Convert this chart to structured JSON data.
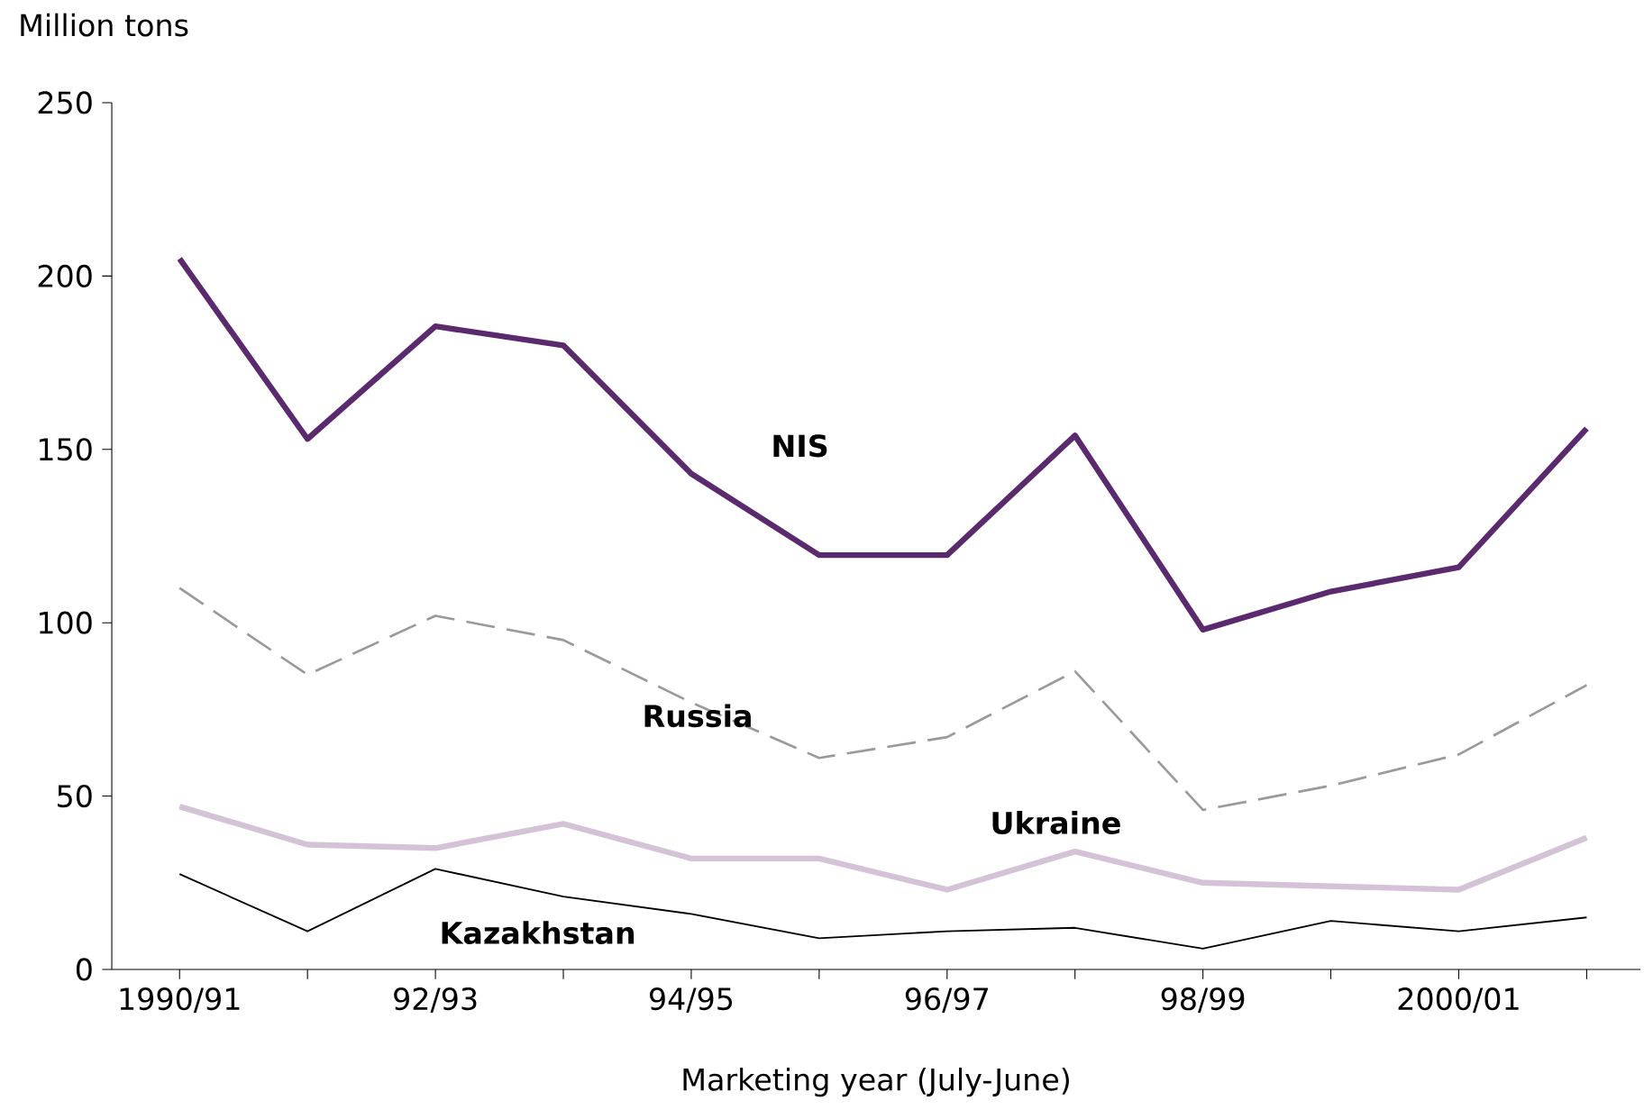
{
  "chart_data": {
    "type": "line",
    "ylabel": "Million tons",
    "xlabel": "Marketing year (July-June)",
    "categories": [
      "1990/91",
      null,
      "92/93",
      null,
      "94/95",
      null,
      "96/97",
      null,
      "98/99",
      null,
      "2000/01",
      null
    ],
    "ylim": [
      0,
      250
    ],
    "yticks": [
      0,
      50,
      100,
      150,
      200,
      250
    ],
    "grid": false,
    "legend": false,
    "marker": "none",
    "series": [
      {
        "name": "NIS",
        "color": "#5b2a6e",
        "line_style": "solid",
        "values": [
          205,
          153,
          185.5,
          180,
          143,
          119.5,
          119.5,
          154,
          98,
          109,
          116,
          156
        ]
      },
      {
        "name": "Russia",
        "color": "#9a9a9a",
        "line_style": "dashed",
        "values": [
          110,
          85,
          102,
          95,
          77,
          61,
          67,
          86,
          46,
          53,
          62,
          82
        ]
      },
      {
        "name": "Ukraine",
        "color": "#d4c3d6",
        "line_style": "solid",
        "values": [
          47,
          36,
          35,
          42,
          32,
          32,
          23,
          34,
          25,
          24,
          23,
          38
        ]
      },
      {
        "name": "Kazakhstan",
        "color": "#000000",
        "line_style": "solid",
        "values": [
          27.5,
          11,
          29,
          21,
          16,
          9,
          11,
          12,
          6,
          14,
          11,
          15
        ]
      }
    ]
  }
}
